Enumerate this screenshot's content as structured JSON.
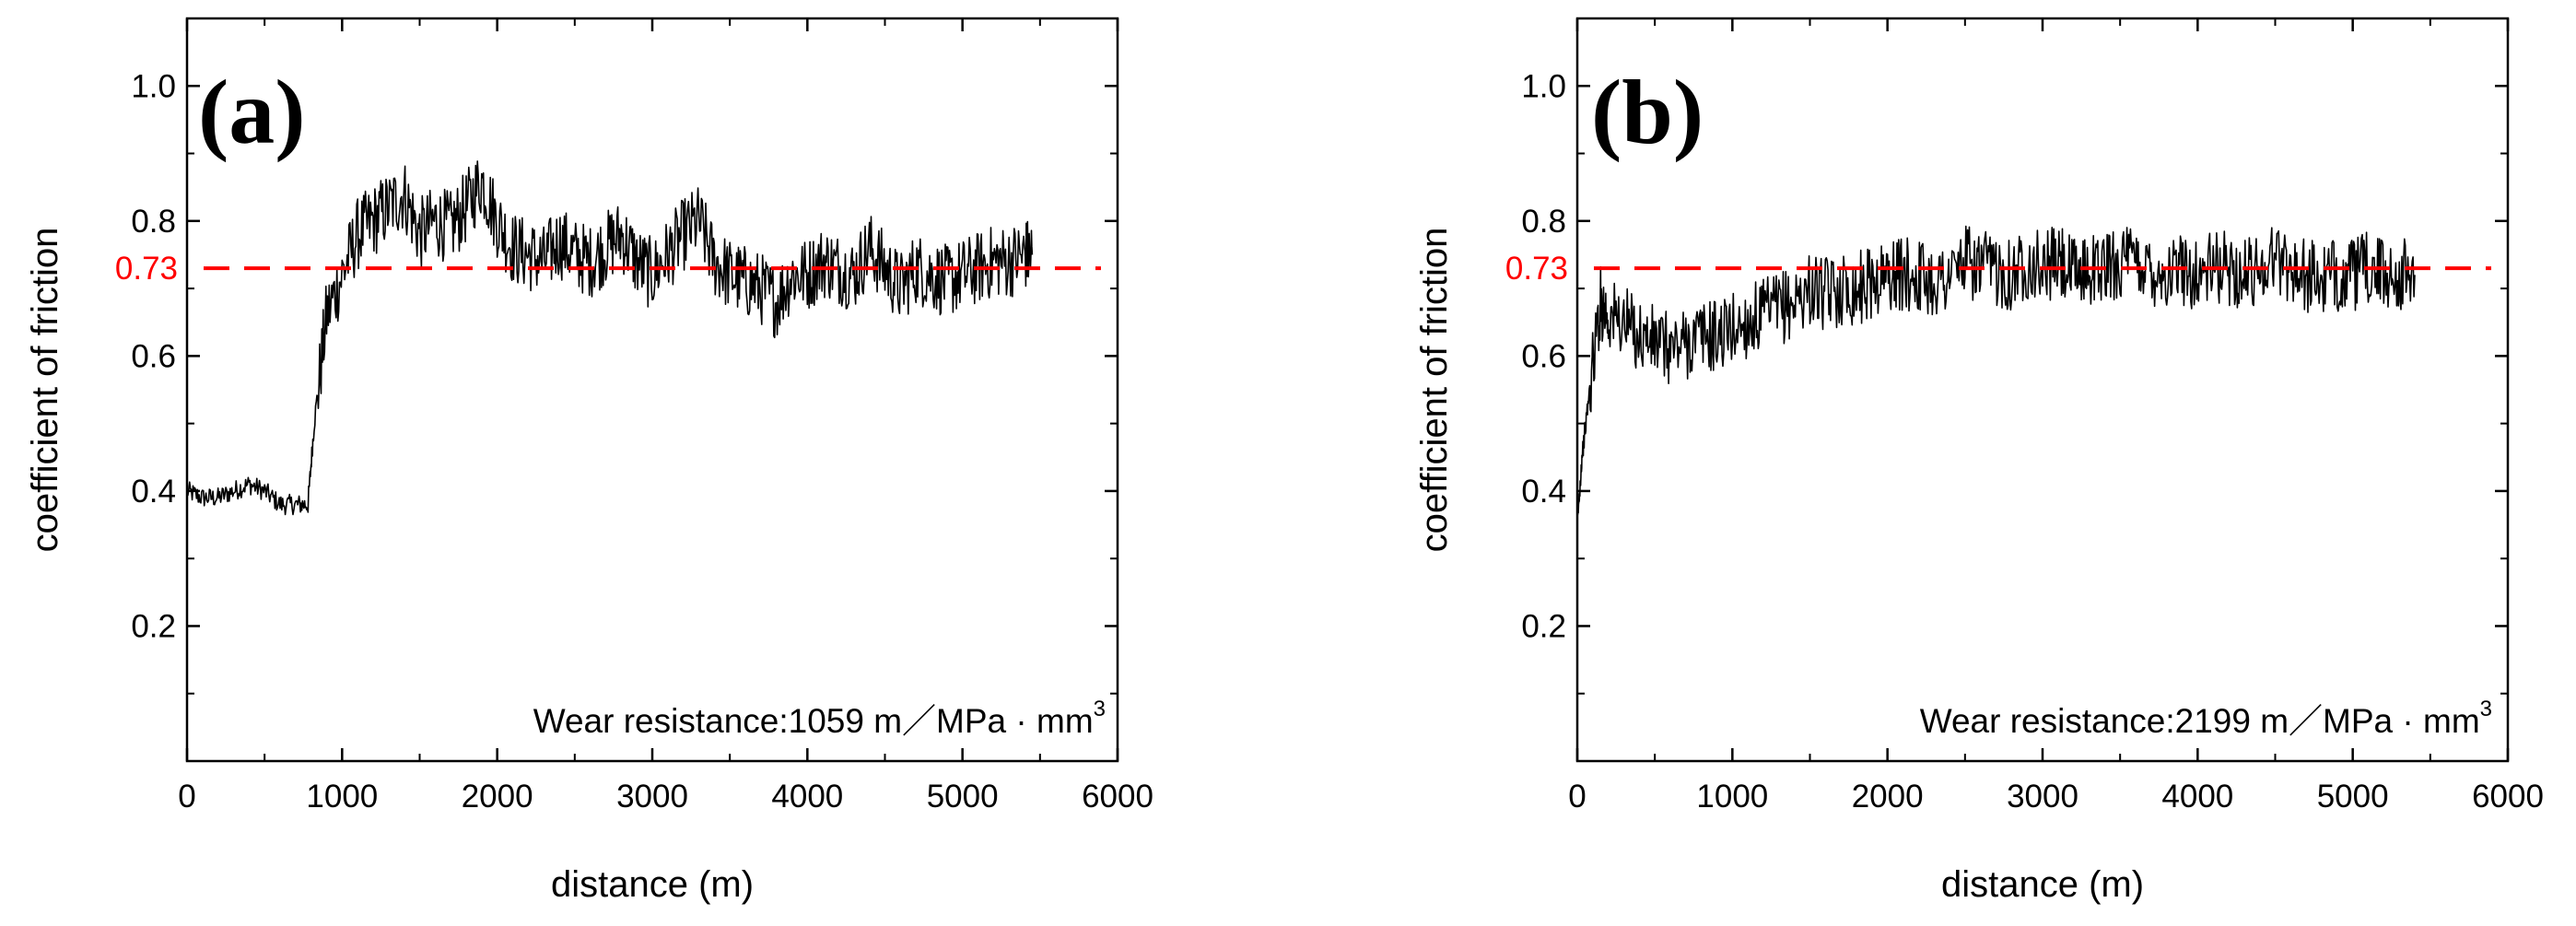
{
  "chart_data": [
    {
      "type": "line",
      "panel_label": "(a)",
      "xlabel": "distance (m)",
      "ylabel": "coefficient of friction",
      "xlim": [
        0,
        6000
      ],
      "ylim": [
        0.0,
        1.1
      ],
      "xticks": [
        "0",
        "1000",
        "2000",
        "3000",
        "4000",
        "5000",
        "6000"
      ],
      "yticks": [
        "0.2",
        "0.4",
        "0.6",
        "0.8",
        "1.0"
      ],
      "reference_line": {
        "value": 0.73,
        "label": "0.73",
        "color": "#ff0000",
        "style": "dashed"
      },
      "annotation": {
        "text": "Wear resistance:1059  m／MPa · mm",
        "superscript": "3"
      },
      "series": [
        {
          "name": "coefficient of friction",
          "color": "#000000",
          "x": [
            0,
            100,
            200,
            300,
            400,
            500,
            600,
            700,
            780,
            820,
            900,
            1000,
            1100,
            1200,
            1300,
            1400,
            1500,
            1600,
            1700,
            1800,
            1900,
            2000,
            2100,
            2200,
            2300,
            2400,
            2500,
            2600,
            2700,
            2800,
            2900,
            3000,
            3100,
            3200,
            3300,
            3400,
            3500,
            3600,
            3700,
            3800,
            3900,
            4000,
            4100,
            4200,
            4300,
            4400,
            4500,
            4600,
            4700,
            4800,
            4900,
            5000,
            5100,
            5200,
            5300,
            5400,
            5450
          ],
          "values": [
            0.4,
            0.39,
            0.39,
            0.4,
            0.41,
            0.4,
            0.38,
            0.38,
            0.38,
            0.5,
            0.66,
            0.72,
            0.78,
            0.8,
            0.82,
            0.84,
            0.78,
            0.8,
            0.79,
            0.82,
            0.86,
            0.8,
            0.76,
            0.75,
            0.74,
            0.77,
            0.75,
            0.74,
            0.76,
            0.78,
            0.74,
            0.72,
            0.75,
            0.78,
            0.8,
            0.74,
            0.72,
            0.71,
            0.7,
            0.68,
            0.72,
            0.72,
            0.74,
            0.73,
            0.72,
            0.76,
            0.73,
            0.7,
            0.73,
            0.72,
            0.71,
            0.72,
            0.73,
            0.74,
            0.74,
            0.75,
            0.75
          ]
        }
      ]
    },
    {
      "type": "line",
      "panel_label": "(b)",
      "xlabel": "distance (m)",
      "ylabel": "coefficient of friction",
      "xlim": [
        0,
        6000
      ],
      "ylim": [
        0.0,
        1.1
      ],
      "xticks": [
        "0",
        "1000",
        "2000",
        "3000",
        "4000",
        "5000",
        "6000"
      ],
      "yticks": [
        "0.2",
        "0.4",
        "0.6",
        "0.8",
        "1.0"
      ],
      "reference_line": {
        "value": 0.73,
        "label": "0.73",
        "color": "#ff0000",
        "style": "dashed"
      },
      "annotation": {
        "text": "Wear resistance:2199 m／MPa · mm",
        "superscript": "3"
      },
      "series": [
        {
          "name": "coefficient of friction",
          "color": "#000000",
          "x": [
            0,
            30,
            80,
            150,
            200,
            300,
            400,
            500,
            600,
            700,
            800,
            900,
            1000,
            1100,
            1200,
            1300,
            1400,
            1500,
            1600,
            1700,
            1800,
            1900,
            2000,
            2100,
            2200,
            2300,
            2400,
            2500,
            2600,
            2700,
            2800,
            2900,
            3000,
            3100,
            3200,
            3300,
            3400,
            3500,
            3600,
            3700,
            3800,
            3900,
            4000,
            4100,
            4200,
            4300,
            4400,
            4500,
            4600,
            4700,
            4800,
            4900,
            5000,
            5100,
            5200,
            5300,
            5400
          ],
          "values": [
            0.35,
            0.45,
            0.55,
            0.68,
            0.66,
            0.65,
            0.63,
            0.62,
            0.61,
            0.62,
            0.63,
            0.63,
            0.64,
            0.65,
            0.66,
            0.67,
            0.68,
            0.7,
            0.69,
            0.7,
            0.7,
            0.71,
            0.72,
            0.72,
            0.72,
            0.71,
            0.72,
            0.74,
            0.73,
            0.73,
            0.72,
            0.74,
            0.73,
            0.74,
            0.72,
            0.73,
            0.73,
            0.74,
            0.74,
            0.73,
            0.72,
            0.73,
            0.72,
            0.73,
            0.73,
            0.72,
            0.73,
            0.75,
            0.73,
            0.72,
            0.71,
            0.72,
            0.72,
            0.73,
            0.72,
            0.72,
            0.72
          ]
        }
      ]
    }
  ]
}
